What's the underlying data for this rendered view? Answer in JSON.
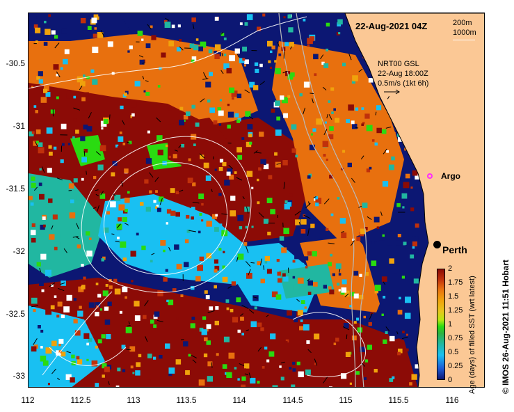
{
  "title": "22-Aug-2021 04Z",
  "depth_contours": [
    "200m",
    "1000m"
  ],
  "currents": {
    "source": "NRT00 GSL",
    "time": "22-Aug 18:00Z",
    "scale": "0.5m/s (1kt 6h)"
  },
  "y_ticks": [
    "-30.5",
    "-31",
    "-31.5",
    "-32",
    "-32.5",
    "-33"
  ],
  "x_ticks": [
    "112",
    "112.5",
    "113",
    "113.5",
    "114",
    "114.5",
    "115",
    "115.5",
    "116"
  ],
  "places": {
    "argo": "Argo",
    "perth": "Perth"
  },
  "colorbar": {
    "ticks": [
      "2",
      "1.75",
      "1.5",
      "1.25",
      "1",
      "0.75",
      "0.5",
      "0.25",
      "0"
    ],
    "title": "Age (days) of filled SST (wrt latest)"
  },
  "credit": "©  IMOS 26-Aug-2021 11:51 Hobart",
  "colors": {
    "land": "#fbc895",
    "deep_blue": "#0c1773",
    "cyan": "#19c0f2",
    "teal": "#21b7a1",
    "orange": "#e8700e",
    "brown": "#8c0b06",
    "green": "#2adb11"
  }
}
